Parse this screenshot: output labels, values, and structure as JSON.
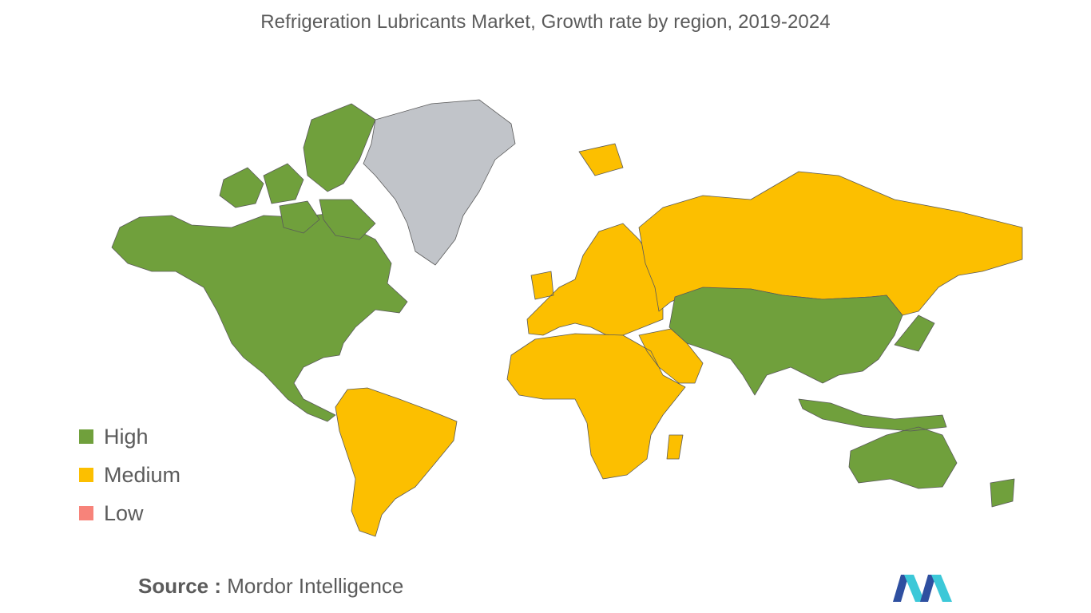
{
  "title": "Refrigeration Lubricants Market, Growth rate by region, 2019-2024",
  "legend": [
    {
      "label": "High",
      "color": "#70a03c"
    },
    {
      "label": "Medium",
      "color": "#fcbf00"
    },
    {
      "label": "Low",
      "color": "#f7837a"
    }
  ],
  "no_data_color": "#c1c4c9",
  "source": {
    "prefix": "Source :",
    "name": "Mordor Intelligence"
  },
  "logo": {
    "icon": "mordor-intelligence-logo",
    "colors": [
      "#2e4fa0",
      "#3cc8d8"
    ]
  },
  "map": {
    "regions": [
      {
        "name": "North America",
        "level": "High"
      },
      {
        "name": "Asia-Pacific",
        "level": "High"
      },
      {
        "name": "Europe",
        "level": "Medium"
      },
      {
        "name": "South America",
        "level": "Medium"
      },
      {
        "name": "Middle East and Africa",
        "level": "Medium"
      },
      {
        "name": "Russia",
        "level": "Medium"
      },
      {
        "name": "Greenland",
        "level": "No data"
      }
    ]
  }
}
